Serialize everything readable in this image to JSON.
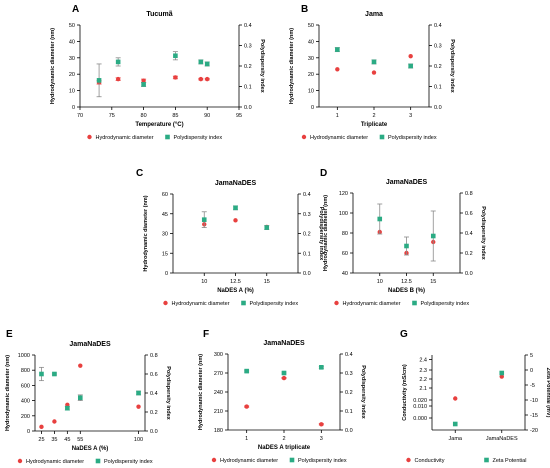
{
  "colors": {
    "hd": "#e8403f",
    "pdi": "#2bab84",
    "conductivity": "#e8403f",
    "zeta": "#2bab84",
    "axis": "#000000",
    "error_bar": "#8a8a8a"
  },
  "chart_data": [
    {
      "panel": "A",
      "title": "Tucumã",
      "type": "scatter",
      "xlabel": "Temperature (°C)",
      "ylabel": "Hydrodynamic diameter (nm)",
      "y2label": "Polydispersity index",
      "xlim": [
        70,
        95
      ],
      "xticks": [
        "70",
        "75",
        "80",
        "85",
        "90",
        "95"
      ],
      "xtick_values": [
        70,
        75,
        80,
        85,
        90,
        95
      ],
      "ylim": [
        0,
        50
      ],
      "yticks": [
        "0",
        "10",
        "20",
        "30",
        "40",
        "50"
      ],
      "y2lim": [
        0,
        0.4
      ],
      "y2ticks": [
        "0.0",
        "0.1",
        "0.2",
        "0.3",
        "0.4"
      ],
      "series": [
        {
          "name": "Hydrodynamic diameter",
          "axis": "left",
          "x": [
            73,
            76,
            80,
            85,
            89,
            90
          ],
          "y": [
            15,
            17,
            16,
            18,
            17,
            17
          ],
          "err": [
            1,
            0.8,
            1,
            0.8,
            0.5,
            0.5
          ]
        },
        {
          "name": "Polydispersity index",
          "axis": "right",
          "x": [
            73,
            76,
            80,
            85,
            89,
            90
          ],
          "y": [
            0.13,
            0.22,
            0.11,
            0.25,
            0.22,
            0.21
          ],
          "err": [
            0.08,
            0.02,
            0.01,
            0.02,
            0.01,
            0.01
          ]
        }
      ],
      "legend": [
        "Hydrodynamic diameter",
        "Polydispersity index"
      ]
    },
    {
      "panel": "B",
      "title": "Jama",
      "type": "scatter",
      "xlabel": "Triplicate",
      "ylabel": "Hydrodynamic diameter (nm)",
      "y2label": "Polydispersity index",
      "xlim": [
        0.5,
        3.5
      ],
      "xticks": [
        "1",
        "2",
        "3"
      ],
      "xtick_values": [
        1,
        2,
        3
      ],
      "ylim": [
        0,
        50
      ],
      "yticks": [
        "0",
        "10",
        "20",
        "30",
        "40",
        "50"
      ],
      "y2lim": [
        0,
        0.4
      ],
      "y2ticks": [
        "0.0",
        "0.1",
        "0.2",
        "0.3",
        "0.4"
      ],
      "series": [
        {
          "name": "Hydrodynamic diameter",
          "axis": "left",
          "x": [
            1,
            2,
            3
          ],
          "y": [
            23,
            21,
            31
          ],
          "err": [
            0,
            0,
            0
          ]
        },
        {
          "name": "Polydispersity index",
          "axis": "right",
          "x": [
            1,
            2,
            3
          ],
          "y": [
            0.28,
            0.22,
            0.2
          ],
          "err": [
            0.01,
            0.01,
            0.01
          ]
        }
      ],
      "legend": [
        "Hydrodynamic diameter",
        "Polydispersity index"
      ]
    },
    {
      "panel": "C",
      "title": "JamaNaDES",
      "type": "scatter",
      "xlabel": "NaDES A (%)",
      "ylabel": "Hydrodynamic diameter (nm)",
      "y2label": "Polydispersity index",
      "xlim": [
        7.5,
        17.5
      ],
      "xticks": [
        "10",
        "12.5",
        "15"
      ],
      "xtick_values": [
        10,
        12.5,
        15
      ],
      "ylim": [
        0,
        60
      ],
      "yticks": [
        "0",
        "15",
        "30",
        "45",
        "60"
      ],
      "y2lim": [
        0,
        0.4
      ],
      "y2ticks": [
        "0.0",
        "0.1",
        "0.2",
        "0.3",
        "0.4"
      ],
      "series": [
        {
          "name": "Hydrodynamic diameter",
          "axis": "left",
          "x": [
            10,
            12.5,
            15
          ],
          "y": [
            37,
            40,
            35
          ],
          "err": [
            0,
            0,
            0
          ]
        },
        {
          "name": "Polydispersity index",
          "axis": "right",
          "x": [
            10,
            12.5,
            15
          ],
          "y": [
            0.27,
            0.33,
            0.23
          ],
          "err": [
            0.04,
            0.01,
            0.01
          ]
        }
      ],
      "legend": [
        "Hydrodynamic diameter",
        "Polydispersity index"
      ]
    },
    {
      "panel": "D",
      "title": "JamaNaDES",
      "type": "scatter",
      "xlabel": "NaDES B (%)",
      "ylabel": "Hydrodynamic diameter (nm)",
      "y2label": "Polydispersity index",
      "xlim": [
        7.5,
        17.5
      ],
      "xticks": [
        "10",
        "12.5",
        "15"
      ],
      "xtick_values": [
        10,
        12.5,
        15
      ],
      "ylim": [
        40,
        120
      ],
      "yticks": [
        "40",
        "60",
        "80",
        "100",
        "120"
      ],
      "y2lim": [
        0,
        0.8
      ],
      "y2ticks": [
        "0.0",
        "0.2",
        "0.4",
        "0.6",
        "0.8"
      ],
      "series": [
        {
          "name": "Hydrodynamic diameter",
          "axis": "left",
          "x": [
            10,
            12.5,
            15
          ],
          "y": [
            81,
            60,
            71
          ],
          "err": [
            0,
            0,
            0
          ]
        },
        {
          "name": "Polydispersity index",
          "axis": "right",
          "x": [
            10,
            12.5,
            15
          ],
          "y": [
            0.54,
            0.27,
            0.37
          ],
          "err": [
            0.15,
            0.09,
            0.25
          ]
        }
      ],
      "legend": [
        "Hydrodynamic diameter",
        "Polydispersity index"
      ]
    },
    {
      "panel": "E",
      "title": "JamaNaDES",
      "type": "scatter",
      "xlabel": "NaDES A (%)",
      "ylabel": "Hydrodynamic diameter (nm)",
      "y2label": "Polydispersity index",
      "xlim": [
        20,
        105
      ],
      "xticks": [
        "25",
        "35",
        "45",
        "55",
        "100"
      ],
      "xtick_values": [
        25,
        35,
        45,
        55,
        100
      ],
      "ylim": [
        0,
        1000
      ],
      "yticks": [
        "0",
        "200",
        "400",
        "600",
        "800",
        "1000"
      ],
      "y2lim": [
        0,
        0.8
      ],
      "y2ticks": [
        "0.0",
        "0.2",
        "0.4",
        "0.6",
        "0.8"
      ],
      "series": [
        {
          "name": "Hydrodynamic diameter",
          "axis": "left",
          "x": [
            25,
            35,
            45,
            55,
            100
          ],
          "y": [
            55,
            125,
            345,
            860,
            320
          ],
          "err": [
            0,
            0,
            0,
            0,
            0
          ]
        },
        {
          "name": "Polydispersity index",
          "axis": "right",
          "x": [
            25,
            35,
            45,
            55,
            100
          ],
          "y": [
            0.6,
            0.6,
            0.24,
            0.35,
            0.4
          ],
          "err": [
            0.07,
            0.01,
            0.02,
            0.03,
            0.02
          ]
        }
      ],
      "legend": [
        "Hydrodynamic diameter",
        "Polydispersity index"
      ]
    },
    {
      "panel": "F",
      "title": "JamaNaDES",
      "type": "scatter",
      "xlabel": "NaDES A triplicate",
      "ylabel": "Hydrodynamic diameter (nm)",
      "y2label": "Polydispersity index",
      "xlim": [
        0.5,
        3.5
      ],
      "xticks": [
        "1",
        "2",
        "3"
      ],
      "xtick_values": [
        1,
        2,
        3
      ],
      "ylim": [
        180,
        300
      ],
      "yticks": [
        "180",
        "210",
        "240",
        "270",
        "300"
      ],
      "y2lim": [
        0,
        0.4
      ],
      "y2ticks": [
        "0.0",
        "0.1",
        "0.2",
        "0.3",
        "0.4"
      ],
      "series": [
        {
          "name": "Hydrodynamic diameter",
          "axis": "left",
          "x": [
            1,
            2,
            3
          ],
          "y": [
            217,
            262,
            189
          ],
          "err": [
            1,
            1,
            1
          ]
        },
        {
          "name": "Polydispersity index",
          "axis": "right",
          "x": [
            1,
            2,
            3
          ],
          "y": [
            0.31,
            0.3,
            0.33
          ],
          "err": [
            0.005,
            0.005,
            0.005
          ]
        }
      ],
      "legend": [
        "Hydrodynamic diameter",
        "Polydispersity index"
      ]
    },
    {
      "panel": "G",
      "title": "",
      "type": "scatter",
      "xlabel": "",
      "ylabel": "Conductivity (mS/cm)",
      "y2label": "Zeta Potential (mV)",
      "xlim": [
        0.5,
        2.5
      ],
      "xticks": [
        "Jama",
        "JamaNaDES"
      ],
      "xtick_values": [
        1,
        2
      ],
      "ylim": [
        0,
        2.5
      ],
      "yticks": [
        "0.000",
        "0.010",
        "0.020",
        "2.1",
        "2.2",
        "2.3",
        "2.4"
      ],
      "ytick_values": [
        0.4,
        0.8,
        1.0,
        1.4,
        1.7,
        2.0,
        2.35
      ],
      "y2lim": [
        -20,
        5
      ],
      "y2ticks": [
        "-20",
        "-15",
        "-10",
        "-5",
        "0",
        "5"
      ],
      "series": [
        {
          "name": "Conductivity",
          "axis": "left",
          "x": [
            1,
            2
          ],
          "y": [
            0.018,
            2.32
          ],
          "plot_y": [
            1.05,
            1.78
          ]
        },
        {
          "name": "Zeta Potential",
          "axis": "right",
          "x": [
            1,
            2
          ],
          "y": [
            -18,
            -1
          ]
        }
      ],
      "legend": [
        "Conductivity",
        "Zeta Potential"
      ]
    }
  ]
}
